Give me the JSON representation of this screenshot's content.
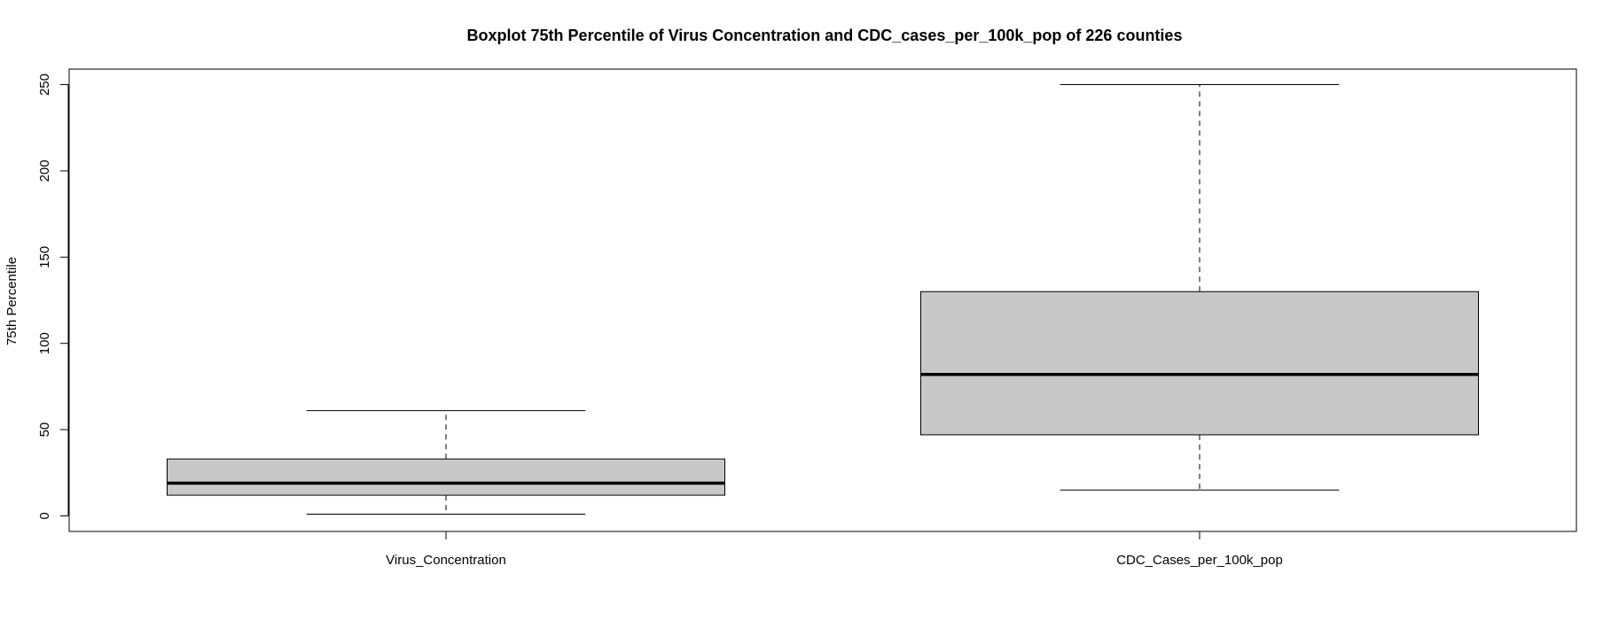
{
  "chart_data": {
    "type": "boxplot",
    "title": "Boxplot 75th Percentile of Virus Concentration and CDC_cases_per_100k_pop of 226 counties",
    "xlabel": "",
    "ylabel": "75th Percentile",
    "ylim": [
      -9,
      259
    ],
    "yticks": [
      0,
      50,
      100,
      150,
      200,
      250
    ],
    "grid": false,
    "box_fill": "#c8c8c8",
    "line_color": "#000000",
    "categories": [
      "Virus_Concentration",
      "CDC_Cases_per_100k_pop"
    ],
    "boxes": [
      {
        "name": "Virus_Concentration",
        "min": 1,
        "q1": 12,
        "median": 19,
        "q3": 33,
        "max": 61
      },
      {
        "name": "CDC_Cases_per_100k_pop",
        "min": 15,
        "q1": 47,
        "median": 82,
        "q3": 130,
        "max": 250
      }
    ]
  }
}
